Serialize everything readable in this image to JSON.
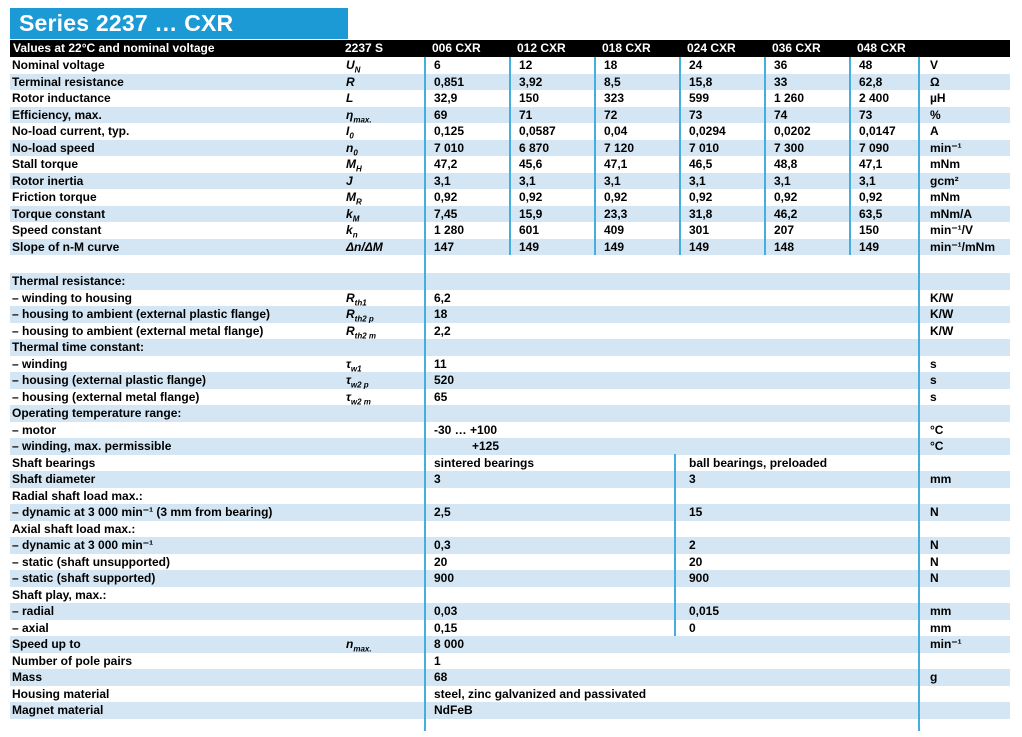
{
  "title": "Series 2237 … CXR",
  "header": {
    "left_label": "Values at 22°C and nominal voltage",
    "columns": [
      "2237 S",
      "006 CXR",
      "012 CXR",
      "018 CXR",
      "024 CXR",
      "036 CXR",
      "048 CXR"
    ]
  },
  "colors": {
    "title_bar_bg": "#1b9ad6",
    "header_bar_bg": "#000000",
    "row_shade": "#d4e6f3",
    "divider_line": "#45aede"
  },
  "rows": [
    {
      "type": "cols",
      "shade": false,
      "label": "Nominal voltage",
      "symbol": {
        "main": "U",
        "sub": "N"
      },
      "values": [
        "6",
        "12",
        "18",
        "24",
        "36",
        "48"
      ],
      "unit": "V"
    },
    {
      "type": "cols",
      "shade": true,
      "label": "Terminal resistance",
      "symbol": {
        "main": "R",
        "sub": ""
      },
      "values": [
        "0,851",
        "3,92",
        "8,5",
        "15,8",
        "33",
        "62,8"
      ],
      "unit": "Ω"
    },
    {
      "type": "cols",
      "shade": false,
      "label": "Rotor inductance",
      "symbol": {
        "main": "L",
        "sub": ""
      },
      "values": [
        "32,9",
        "150",
        "323",
        "599",
        "1 260",
        "2 400"
      ],
      "unit": "µH"
    },
    {
      "type": "cols",
      "shade": true,
      "label": "Efficiency, max.",
      "symbol": {
        "main": "η",
        "sub": "max."
      },
      "values": [
        "69",
        "71",
        "72",
        "73",
        "74",
        "73"
      ],
      "unit": "%"
    },
    {
      "type": "cols",
      "shade": false,
      "label": "No-load current, typ.",
      "symbol": {
        "main": "I",
        "sub": "0"
      },
      "values": [
        "0,125",
        "0,0587",
        "0,04",
        "0,0294",
        "0,0202",
        "0,0147"
      ],
      "unit": "A"
    },
    {
      "type": "cols",
      "shade": true,
      "label": "No-load speed",
      "symbol": {
        "main": "n",
        "sub": "0"
      },
      "values": [
        "7 010",
        "6 870",
        "7 120",
        "7 010",
        "7 300",
        "7 090"
      ],
      "unit": "min⁻¹"
    },
    {
      "type": "cols",
      "shade": false,
      "label": "Stall torque",
      "symbol": {
        "main": "M",
        "sub": "H"
      },
      "values": [
        "47,2",
        "45,6",
        "47,1",
        "46,5",
        "48,8",
        "47,1"
      ],
      "unit": "mNm"
    },
    {
      "type": "cols",
      "shade": true,
      "label": "Rotor inertia",
      "symbol": {
        "main": "J",
        "sub": ""
      },
      "values": [
        "3,1",
        "3,1",
        "3,1",
        "3,1",
        "3,1",
        "3,1"
      ],
      "unit": "gcm²"
    },
    {
      "type": "cols",
      "shade": false,
      "label": "Friction torque",
      "symbol": {
        "main": "M",
        "sub": "R"
      },
      "values": [
        "0,92",
        "0,92",
        "0,92",
        "0,92",
        "0,92",
        "0,92"
      ],
      "unit": "mNm"
    },
    {
      "type": "cols",
      "shade": true,
      "label": "Torque constant",
      "symbol": {
        "main": "k",
        "sub": "M"
      },
      "values": [
        "7,45",
        "15,9",
        "23,3",
        "31,8",
        "46,2",
        "63,5"
      ],
      "unit": "mNm/A"
    },
    {
      "type": "cols",
      "shade": false,
      "label": "Speed constant",
      "symbol": {
        "main": "k",
        "sub": "n"
      },
      "values": [
        "1 280",
        "601",
        "409",
        "301",
        "207",
        "150"
      ],
      "unit": "min⁻¹/V"
    },
    {
      "type": "cols",
      "shade": true,
      "label": "Slope of n-M curve",
      "symbol": {
        "main": "Δn/ΔM",
        "sub": ""
      },
      "values": [
        "147",
        "149",
        "149",
        "149",
        "148",
        "149"
      ],
      "unit": "min⁻¹/mNm"
    },
    {
      "type": "spacer",
      "shade": false
    },
    {
      "type": "header",
      "shade": true,
      "label": "Thermal resistance:"
    },
    {
      "type": "single",
      "shade": false,
      "label": "– winding to housing",
      "symbol": {
        "main": "R",
        "sub": "th1"
      },
      "values": [
        "6,2"
      ],
      "unit": "K/W"
    },
    {
      "type": "single",
      "shade": true,
      "label": "– housing to ambient (external plastic flange)",
      "symbol": {
        "main": "R",
        "sub": "th2 p"
      },
      "values": [
        "18"
      ],
      "unit": "K/W"
    },
    {
      "type": "single",
      "shade": false,
      "label": "– housing to ambient (external metal flange)",
      "symbol": {
        "main": "R",
        "sub": "th2 m"
      },
      "values": [
        "2,2"
      ],
      "unit": "K/W"
    },
    {
      "type": "header",
      "shade": true,
      "label": "Thermal time constant:"
    },
    {
      "type": "single",
      "shade": false,
      "label": "– winding",
      "symbol": {
        "main": "τ",
        "sub": "w1"
      },
      "values": [
        "11"
      ],
      "unit": "s"
    },
    {
      "type": "single",
      "shade": true,
      "label": "– housing (external plastic flange)",
      "symbol": {
        "main": "τ",
        "sub": "w2 p"
      },
      "values": [
        "520"
      ],
      "unit": "s"
    },
    {
      "type": "single",
      "shade": false,
      "label": "– housing (external metal flange)",
      "symbol": {
        "main": "τ",
        "sub": "w2 m"
      },
      "values": [
        "65"
      ],
      "unit": "s"
    },
    {
      "type": "header",
      "shade": true,
      "label": "Operating temperature range:"
    },
    {
      "type": "single",
      "shade": false,
      "label": "– motor",
      "values": [
        "-30 … +100"
      ],
      "unit": "°C"
    },
    {
      "type": "single",
      "shade": true,
      "label": "– winding, max. permissible",
      "values": [
        "+125"
      ],
      "unit": "°C",
      "indent": true
    },
    {
      "type": "dual",
      "shade": false,
      "label": "Shaft bearings",
      "values": [
        "sintered bearings",
        "ball bearings, preloaded"
      ],
      "unit": ""
    },
    {
      "type": "dual",
      "shade": true,
      "label": "Shaft diameter",
      "values": [
        "3",
        "3"
      ],
      "unit": "mm"
    },
    {
      "type": "header",
      "shade": false,
      "label": "Radial shaft load max.:"
    },
    {
      "type": "dual",
      "shade": true,
      "label": "– dynamic at 3 000 min⁻¹ (3 mm from bearing)",
      "values": [
        "2,5",
        "15"
      ],
      "unit": "N"
    },
    {
      "type": "header",
      "shade": false,
      "label": "Axial shaft load max.:"
    },
    {
      "type": "dual",
      "shade": true,
      "label": "– dynamic at 3 000 min⁻¹",
      "values": [
        "0,3",
        "2"
      ],
      "unit": "N"
    },
    {
      "type": "dual",
      "shade": false,
      "label": "– static (shaft unsupported)",
      "values": [
        "20",
        "20"
      ],
      "unit": "N"
    },
    {
      "type": "dual",
      "shade": true,
      "label": "– static (shaft supported)",
      "values": [
        "900",
        "900"
      ],
      "unit": "N"
    },
    {
      "type": "header",
      "shade": false,
      "label": "Shaft play, max.:"
    },
    {
      "type": "dual",
      "shade": true,
      "label": "– radial",
      "values": [
        "0,03",
        "0,015"
      ],
      "unit": "mm"
    },
    {
      "type": "dual",
      "shade": false,
      "label": "– axial",
      "values": [
        "0,15",
        "0"
      ],
      "unit": "mm"
    },
    {
      "type": "single",
      "shade": true,
      "label": "Speed up to",
      "symbol": {
        "main": "n",
        "sub": "max."
      },
      "values": [
        "8 000"
      ],
      "unit": "min⁻¹"
    },
    {
      "type": "single",
      "shade": false,
      "label": "Number of pole pairs",
      "values": [
        "1"
      ],
      "unit": ""
    },
    {
      "type": "single",
      "shade": true,
      "label": "Mass",
      "values": [
        "68"
      ],
      "unit": "g"
    },
    {
      "type": "single",
      "shade": false,
      "label": "Housing material",
      "values": [
        "steel, zinc galvanized and passivated"
      ],
      "unit": ""
    },
    {
      "type": "single",
      "shade": true,
      "label": "Magnet material",
      "values": [
        "NdFeB"
      ],
      "unit": ""
    }
  ]
}
